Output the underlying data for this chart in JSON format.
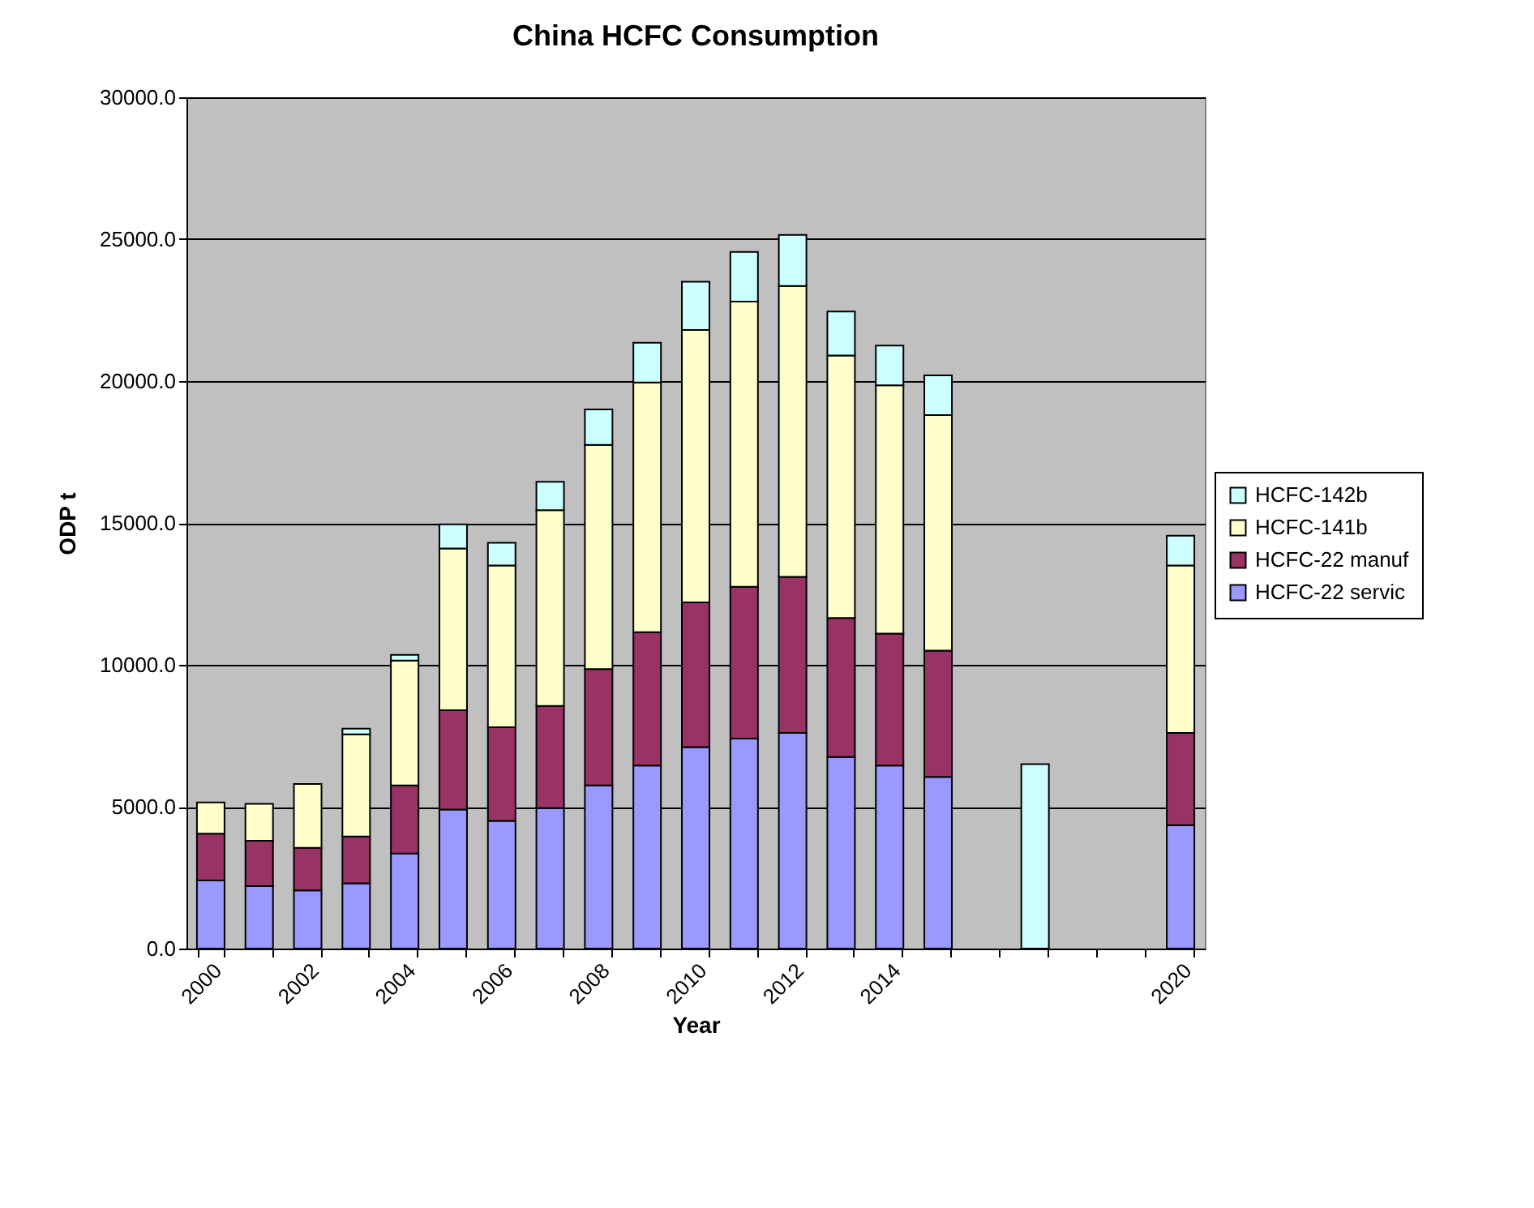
{
  "chart_data": {
    "type": "bar",
    "title": "China HCFC Consumption",
    "xlabel": "Year",
    "ylabel": "ODP t",
    "categories": [
      "2000",
      null,
      "2002",
      null,
      "2004",
      null,
      "2006",
      null,
      "2008",
      null,
      "2010",
      null,
      "2012",
      null,
      "2014",
      null,
      null,
      null,
      null,
      null,
      "2020"
    ],
    "stacked": true,
    "series": [
      {
        "name": "HCFC-22 servic",
        "color": "#9999ff",
        "values": [
          2400,
          2200,
          2050,
          2300,
          3350,
          4900,
          4500,
          4950,
          5750,
          6450,
          7100,
          7400,
          7600,
          6750,
          6450,
          6050,
          null,
          null,
          null,
          null,
          4350
        ]
      },
      {
        "name": "HCFC-22 manuf",
        "color": "#993366",
        "values": [
          1650,
          1600,
          1500,
          1650,
          2400,
          3500,
          3300,
          3600,
          4100,
          4700,
          5100,
          5350,
          5500,
          4900,
          4650,
          4450,
          null,
          null,
          null,
          null,
          3250
        ]
      },
      {
        "name": "HCFC-141b",
        "color": "#ffffcc",
        "values": [
          1100,
          1300,
          2250,
          3600,
          4400,
          5700,
          5700,
          6900,
          7900,
          8800,
          9600,
          10050,
          10250,
          9250,
          8750,
          8300,
          null,
          null,
          null,
          null,
          5900
        ]
      },
      {
        "name": "HCFC-142b",
        "color": "#ccffff",
        "values": [
          null,
          null,
          null,
          200,
          200,
          850,
          800,
          1000,
          1250,
          1400,
          1700,
          1750,
          1800,
          1550,
          1400,
          1400,
          null,
          6500,
          null,
          null,
          1050
        ]
      }
    ],
    "ylim": [
      0,
      30000
    ],
    "yticks": [
      {
        "value": 0,
        "label": "0.0"
      },
      {
        "value": 5000,
        "label": "5000.0"
      },
      {
        "value": 10000,
        "label": "10000.0"
      },
      {
        "value": 15000,
        "label": "15000.0"
      },
      {
        "value": 20000,
        "label": "20000.0"
      },
      {
        "value": 25000,
        "label": "25000.0"
      },
      {
        "value": 30000,
        "label": "30000.0"
      }
    ],
    "grid": "y",
    "legend": "right"
  }
}
